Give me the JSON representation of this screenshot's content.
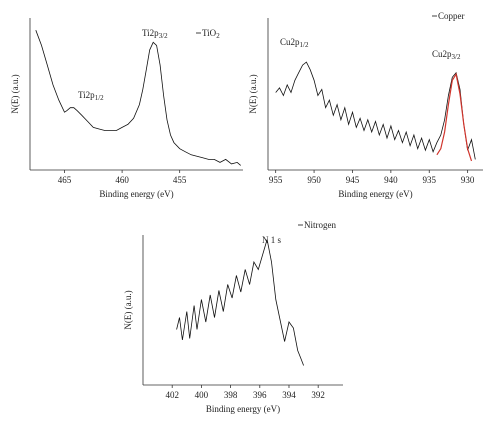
{
  "chart_data": [
    {
      "type": "line",
      "xlabel": "Binding energy (eV)",
      "ylabel": "N(E) (a.u.)",
      "xlim": [
        468,
        449.5
      ],
      "ylim": [
        0,
        100
      ],
      "xticks": [
        465,
        460,
        455
      ],
      "x": [
        467.5,
        467,
        466.5,
        466,
        465.5,
        465,
        464.8,
        464.5,
        464.2,
        463.9,
        463.5,
        463,
        462.5,
        462,
        461.5,
        461,
        460.5,
        460,
        459.5,
        459,
        458.5,
        458.2,
        457.9,
        457.6,
        457.3,
        457,
        456.7,
        456.4,
        456.1,
        455.8,
        455.5,
        455,
        454.5,
        454,
        453.5,
        453,
        452.5,
        452,
        451.5,
        451,
        450.5,
        450,
        449.7
      ],
      "series": [
        {
          "name": "TiO",
          "name_sub": "2",
          "color": "#111111",
          "values": [
            92,
            82,
            69,
            56,
            46,
            38,
            39,
            41,
            41,
            39,
            36,
            32,
            28,
            27,
            26,
            26,
            26,
            28,
            30,
            34,
            43,
            53,
            66,
            79,
            84,
            82,
            69,
            49,
            33,
            23,
            18,
            14,
            12,
            10,
            9,
            8,
            7,
            7,
            5,
            7,
            4,
            5,
            3
          ]
        }
      ],
      "annotations": [
        {
          "text": "Ti2p",
          "sub": "1/2"
        },
        {
          "text": "Ti2p",
          "sub": "3/2"
        }
      ]
    },
    {
      "type": "line",
      "xlabel": "Binding energy (eV)",
      "ylabel": "N(E) (a.u.)",
      "xlim": [
        956,
        928
      ],
      "ylim": [
        0,
        100
      ],
      "xticks": [
        955,
        950,
        945,
        940,
        935,
        930
      ],
      "x": [
        955,
        954.5,
        954,
        953.5,
        953,
        952.5,
        952,
        951.5,
        951,
        950.5,
        950,
        949.5,
        949,
        948.5,
        948,
        947.5,
        947,
        946.5,
        946,
        945.5,
        945,
        944.5,
        944,
        943.5,
        943,
        942.5,
        942,
        941.5,
        941,
        940.5,
        940,
        939.5,
        939,
        938.5,
        938,
        937.5,
        937,
        936.5,
        936,
        935.5,
        935,
        934.5,
        934,
        933.5,
        933,
        932.5,
        932,
        931.5,
        931,
        930.5,
        930,
        929.5,
        929
      ],
      "series": [
        {
          "name": "Copper",
          "color": "#111111",
          "values": [
            51,
            54,
            49,
            56,
            51,
            59,
            64,
            69,
            71,
            66,
            59,
            49,
            53,
            41,
            46,
            36,
            43,
            33,
            41,
            30,
            38,
            28,
            34,
            26,
            33,
            25,
            32,
            23,
            30,
            21,
            29,
            20,
            26,
            18,
            25,
            16,
            23,
            14,
            21,
            13,
            20,
            12,
            18,
            23,
            33,
            49,
            61,
            64,
            53,
            30,
            13,
            20,
            7
          ]
        }
      ],
      "fit": {
        "color": "#d0342c",
        "x": [
          934,
          933.5,
          933,
          932.5,
          932,
          931.5,
          931,
          930.5,
          930,
          929.5
        ],
        "values": [
          10,
          14,
          25,
          43,
          59,
          63,
          50,
          30,
          14,
          6
        ]
      },
      "annotations": [
        {
          "text": "Cu2p",
          "sub": "1/2"
        },
        {
          "text": "Cu2p",
          "sub": "3/2"
        }
      ]
    },
    {
      "type": "line",
      "xlabel": "Binding energy (eV)",
      "ylabel": "N(E) (a.u.)",
      "xlim": [
        404,
        390.3
      ],
      "ylim": [
        0,
        100
      ],
      "xticks": [
        402,
        400,
        398,
        396,
        394,
        392
      ],
      "x": [
        401.7,
        401.5,
        401.3,
        401,
        400.8,
        400.5,
        400.3,
        400,
        399.7,
        399.4,
        399.1,
        398.8,
        398.5,
        398.2,
        397.9,
        397.6,
        397.3,
        397,
        396.7,
        396.4,
        396.1,
        395.8,
        395.5,
        395.2,
        394.9,
        394.6,
        394.3,
        394,
        393.7,
        393.4,
        393.2,
        393
      ],
      "series": [
        {
          "name": "Nitrogen",
          "color": "#111111",
          "values": [
            37,
            45,
            30,
            49,
            31,
            53,
            37,
            57,
            42,
            60,
            45,
            63,
            49,
            67,
            58,
            73,
            62,
            77,
            67,
            82,
            77,
            87,
            97,
            82,
            57,
            43,
            29,
            42,
            38,
            23,
            18,
            13
          ]
        }
      ],
      "annotations": [
        {
          "text": "N 1 s"
        }
      ]
    }
  ]
}
